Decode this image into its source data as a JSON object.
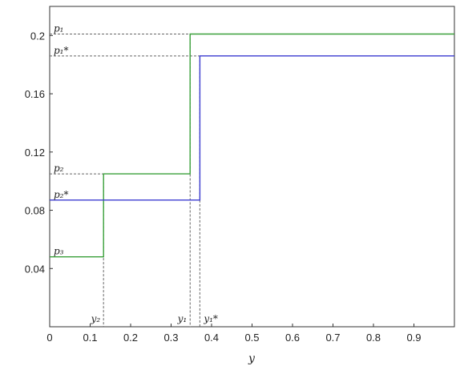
{
  "chart_data": {
    "type": "line",
    "step": true,
    "title": "",
    "xlabel": "y",
    "ylabel": "",
    "xlim": [
      0,
      1
    ],
    "ylim": [
      0,
      0.22
    ],
    "x_ticks": [
      "0",
      "0.1",
      "0.2",
      "0.3",
      "0.4",
      "0.5",
      "0.6",
      "0.7",
      "0.8",
      "0.9"
    ],
    "x_tick_values": [
      0,
      0.1,
      0.2,
      0.3,
      0.4,
      0.5,
      0.6,
      0.7,
      0.8,
      0.9
    ],
    "y_ticks": [
      "0.04",
      "0.08",
      "0.12",
      "0.16",
      "0.2"
    ],
    "y_tick_values": [
      0.04,
      0.08,
      0.12,
      0.16,
      0.2
    ],
    "grid": false,
    "series": [
      {
        "color": "#3aa03a",
        "points": [
          [
            0,
            0.048
          ],
          [
            0.133,
            0.048
          ],
          [
            0.133,
            0.105
          ],
          [
            0.347,
            0.105
          ],
          [
            0.347,
            0.201
          ],
          [
            1,
            0.201
          ]
        ]
      },
      {
        "color": "#3b3bd0",
        "points": [
          [
            0,
            0.087
          ],
          [
            0.371,
            0.087
          ],
          [
            0.371,
            0.186
          ],
          [
            1,
            0.186
          ]
        ]
      }
    ],
    "annotations": {
      "y_refs": [
        {
          "value": 0.201,
          "label": "p₁"
        },
        {
          "value": 0.186,
          "label": "p₁*"
        },
        {
          "value": 0.105,
          "label": "p₂"
        },
        {
          "value": 0.087,
          "label": "p₂*"
        },
        {
          "value": 0.048,
          "label": "p₃"
        }
      ],
      "x_refs": [
        {
          "value": 0.133,
          "label": "y₂",
          "y_top": 0.105
        },
        {
          "value": 0.347,
          "label": "y₁",
          "y_top": 0.201
        },
        {
          "value": 0.371,
          "label": "y₁*",
          "y_top": 0.186
        }
      ]
    }
  }
}
